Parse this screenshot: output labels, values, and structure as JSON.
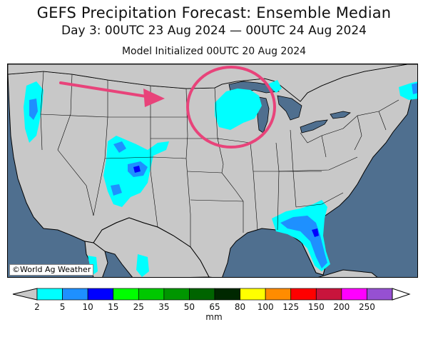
{
  "title": "GEFS Precipitation Forecast: Ensemble Median",
  "subtitle": "Day 3: 00UTC 23 Aug 2024 — 00UTC 24 Aug 2024",
  "init": "Model Initialized 00UTC 20 Aug 2024",
  "copyright": "©World Ag Weather",
  "unit": "mm",
  "colors": {
    "ocean": "#4f6f8f",
    "land": "#c8c8c8",
    "lakes": "#4f6f8f",
    "annotation": "#e8437a"
  },
  "legend": {
    "ticks": [
      "2",
      "5",
      "10",
      "15",
      "25",
      "35",
      "50",
      "65",
      "80",
      "100",
      "125",
      "150",
      "200",
      "250"
    ],
    "colors": [
      "#00ffff",
      "#1e90ff",
      "#0000ff",
      "#00ff00",
      "#00c800",
      "#009600",
      "#006400",
      "#002800",
      "#ffff00",
      "#ff8c00",
      "#ff0000",
      "#c8143c",
      "#ff00ff",
      "#9650d2"
    ],
    "under_color": "#c8c8c8",
    "over_color": "#ffffff"
  },
  "annotations": [
    "arrow",
    "circle"
  ]
}
